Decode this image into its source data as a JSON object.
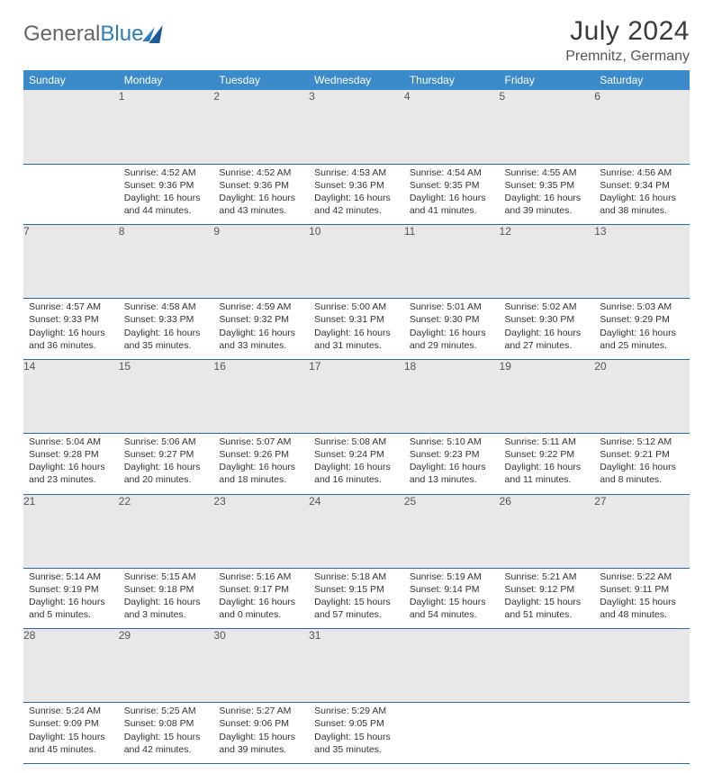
{
  "logo": {
    "part1": "General",
    "part2": "Blue"
  },
  "title": "July 2024",
  "location": "Premnitz, Germany",
  "day_headers": [
    "Sunday",
    "Monday",
    "Tuesday",
    "Wednesday",
    "Thursday",
    "Friday",
    "Saturday"
  ],
  "header_bg": "#3b8aca",
  "header_fg": "#ffffff",
  "daynum_bg": "#e8e8e8",
  "rule_color": "#2e6aa0",
  "weeks": [
    {
      "nums": [
        "",
        "1",
        "2",
        "3",
        "4",
        "5",
        "6"
      ],
      "cells": [
        {
          "empty": true
        },
        {
          "sunrise": "Sunrise: 4:52 AM",
          "sunset": "Sunset: 9:36 PM",
          "daylight": "Daylight: 16 hours and 44 minutes."
        },
        {
          "sunrise": "Sunrise: 4:52 AM",
          "sunset": "Sunset: 9:36 PM",
          "daylight": "Daylight: 16 hours and 43 minutes."
        },
        {
          "sunrise": "Sunrise: 4:53 AM",
          "sunset": "Sunset: 9:36 PM",
          "daylight": "Daylight: 16 hours and 42 minutes."
        },
        {
          "sunrise": "Sunrise: 4:54 AM",
          "sunset": "Sunset: 9:35 PM",
          "daylight": "Daylight: 16 hours and 41 minutes."
        },
        {
          "sunrise": "Sunrise: 4:55 AM",
          "sunset": "Sunset: 9:35 PM",
          "daylight": "Daylight: 16 hours and 39 minutes."
        },
        {
          "sunrise": "Sunrise: 4:56 AM",
          "sunset": "Sunset: 9:34 PM",
          "daylight": "Daylight: 16 hours and 38 minutes."
        }
      ]
    },
    {
      "nums": [
        "7",
        "8",
        "9",
        "10",
        "11",
        "12",
        "13"
      ],
      "cells": [
        {
          "sunrise": "Sunrise: 4:57 AM",
          "sunset": "Sunset: 9:33 PM",
          "daylight": "Daylight: 16 hours and 36 minutes."
        },
        {
          "sunrise": "Sunrise: 4:58 AM",
          "sunset": "Sunset: 9:33 PM",
          "daylight": "Daylight: 16 hours and 35 minutes."
        },
        {
          "sunrise": "Sunrise: 4:59 AM",
          "sunset": "Sunset: 9:32 PM",
          "daylight": "Daylight: 16 hours and 33 minutes."
        },
        {
          "sunrise": "Sunrise: 5:00 AM",
          "sunset": "Sunset: 9:31 PM",
          "daylight": "Daylight: 16 hours and 31 minutes."
        },
        {
          "sunrise": "Sunrise: 5:01 AM",
          "sunset": "Sunset: 9:30 PM",
          "daylight": "Daylight: 16 hours and 29 minutes."
        },
        {
          "sunrise": "Sunrise: 5:02 AM",
          "sunset": "Sunset: 9:30 PM",
          "daylight": "Daylight: 16 hours and 27 minutes."
        },
        {
          "sunrise": "Sunrise: 5:03 AM",
          "sunset": "Sunset: 9:29 PM",
          "daylight": "Daylight: 16 hours and 25 minutes."
        }
      ]
    },
    {
      "nums": [
        "14",
        "15",
        "16",
        "17",
        "18",
        "19",
        "20"
      ],
      "cells": [
        {
          "sunrise": "Sunrise: 5:04 AM",
          "sunset": "Sunset: 9:28 PM",
          "daylight": "Daylight: 16 hours and 23 minutes."
        },
        {
          "sunrise": "Sunrise: 5:06 AM",
          "sunset": "Sunset: 9:27 PM",
          "daylight": "Daylight: 16 hours and 20 minutes."
        },
        {
          "sunrise": "Sunrise: 5:07 AM",
          "sunset": "Sunset: 9:26 PM",
          "daylight": "Daylight: 16 hours and 18 minutes."
        },
        {
          "sunrise": "Sunrise: 5:08 AM",
          "sunset": "Sunset: 9:24 PM",
          "daylight": "Daylight: 16 hours and 16 minutes."
        },
        {
          "sunrise": "Sunrise: 5:10 AM",
          "sunset": "Sunset: 9:23 PM",
          "daylight": "Daylight: 16 hours and 13 minutes."
        },
        {
          "sunrise": "Sunrise: 5:11 AM",
          "sunset": "Sunset: 9:22 PM",
          "daylight": "Daylight: 16 hours and 11 minutes."
        },
        {
          "sunrise": "Sunrise: 5:12 AM",
          "sunset": "Sunset: 9:21 PM",
          "daylight": "Daylight: 16 hours and 8 minutes."
        }
      ]
    },
    {
      "nums": [
        "21",
        "22",
        "23",
        "24",
        "25",
        "26",
        "27"
      ],
      "cells": [
        {
          "sunrise": "Sunrise: 5:14 AM",
          "sunset": "Sunset: 9:19 PM",
          "daylight": "Daylight: 16 hours and 5 minutes."
        },
        {
          "sunrise": "Sunrise: 5:15 AM",
          "sunset": "Sunset: 9:18 PM",
          "daylight": "Daylight: 16 hours and 3 minutes."
        },
        {
          "sunrise": "Sunrise: 5:16 AM",
          "sunset": "Sunset: 9:17 PM",
          "daylight": "Daylight: 16 hours and 0 minutes."
        },
        {
          "sunrise": "Sunrise: 5:18 AM",
          "sunset": "Sunset: 9:15 PM",
          "daylight": "Daylight: 15 hours and 57 minutes."
        },
        {
          "sunrise": "Sunrise: 5:19 AM",
          "sunset": "Sunset: 9:14 PM",
          "daylight": "Daylight: 15 hours and 54 minutes."
        },
        {
          "sunrise": "Sunrise: 5:21 AM",
          "sunset": "Sunset: 9:12 PM",
          "daylight": "Daylight: 15 hours and 51 minutes."
        },
        {
          "sunrise": "Sunrise: 5:22 AM",
          "sunset": "Sunset: 9:11 PM",
          "daylight": "Daylight: 15 hours and 48 minutes."
        }
      ]
    },
    {
      "nums": [
        "28",
        "29",
        "30",
        "31",
        "",
        "",
        ""
      ],
      "cells": [
        {
          "sunrise": "Sunrise: 5:24 AM",
          "sunset": "Sunset: 9:09 PM",
          "daylight": "Daylight: 15 hours and 45 minutes."
        },
        {
          "sunrise": "Sunrise: 5:25 AM",
          "sunset": "Sunset: 9:08 PM",
          "daylight": "Daylight: 15 hours and 42 minutes."
        },
        {
          "sunrise": "Sunrise: 5:27 AM",
          "sunset": "Sunset: 9:06 PM",
          "daylight": "Daylight: 15 hours and 39 minutes."
        },
        {
          "sunrise": "Sunrise: 5:29 AM",
          "sunset": "Sunset: 9:05 PM",
          "daylight": "Daylight: 15 hours and 35 minutes."
        },
        {
          "empty": true
        },
        {
          "empty": true
        },
        {
          "empty": true
        }
      ]
    }
  ]
}
